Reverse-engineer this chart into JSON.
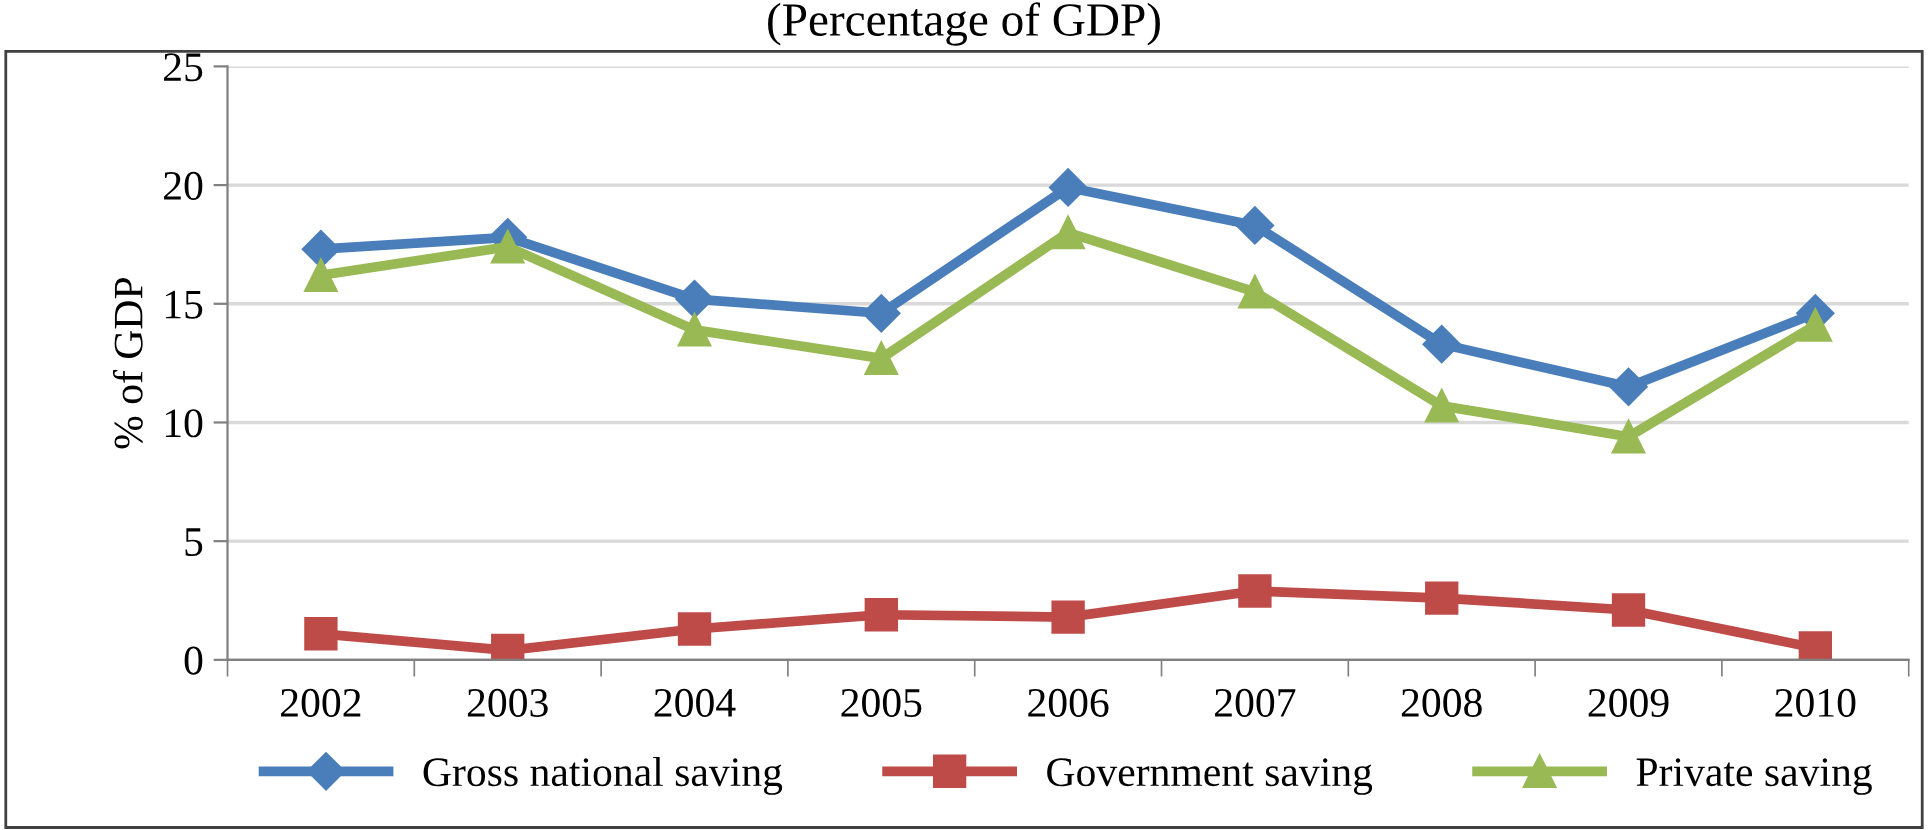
{
  "chart_data": {
    "type": "line",
    "title": "(Percentage of GDP)",
    "ylabel": "% of GDP",
    "categories": [
      "2002",
      "2003",
      "2004",
      "2005",
      "2006",
      "2007",
      "2008",
      "2009",
      "2010"
    ],
    "series": [
      {
        "name": "Gross national saving",
        "color": "#4a7ebb",
        "marker": "diamond",
        "values": [
          17.3,
          17.8,
          15.2,
          14.6,
          19.9,
          18.3,
          13.3,
          11.5,
          14.6
        ]
      },
      {
        "name": "Government saving",
        "color": "#be4b48",
        "marker": "square",
        "values": [
          1.1,
          0.4,
          1.3,
          1.9,
          1.8,
          2.9,
          2.6,
          2.1,
          0.5
        ]
      },
      {
        "name": "Private saving",
        "color": "#98b954",
        "marker": "triangle",
        "values": [
          16.2,
          17.4,
          13.9,
          12.7,
          18.0,
          15.5,
          10.7,
          9.4,
          14.1
        ]
      }
    ],
    "ylim": [
      0,
      25
    ],
    "yticks": [
      0,
      5,
      10,
      15,
      20,
      25
    ],
    "grid": "y",
    "legend": "bottom",
    "line_style": "solid"
  }
}
